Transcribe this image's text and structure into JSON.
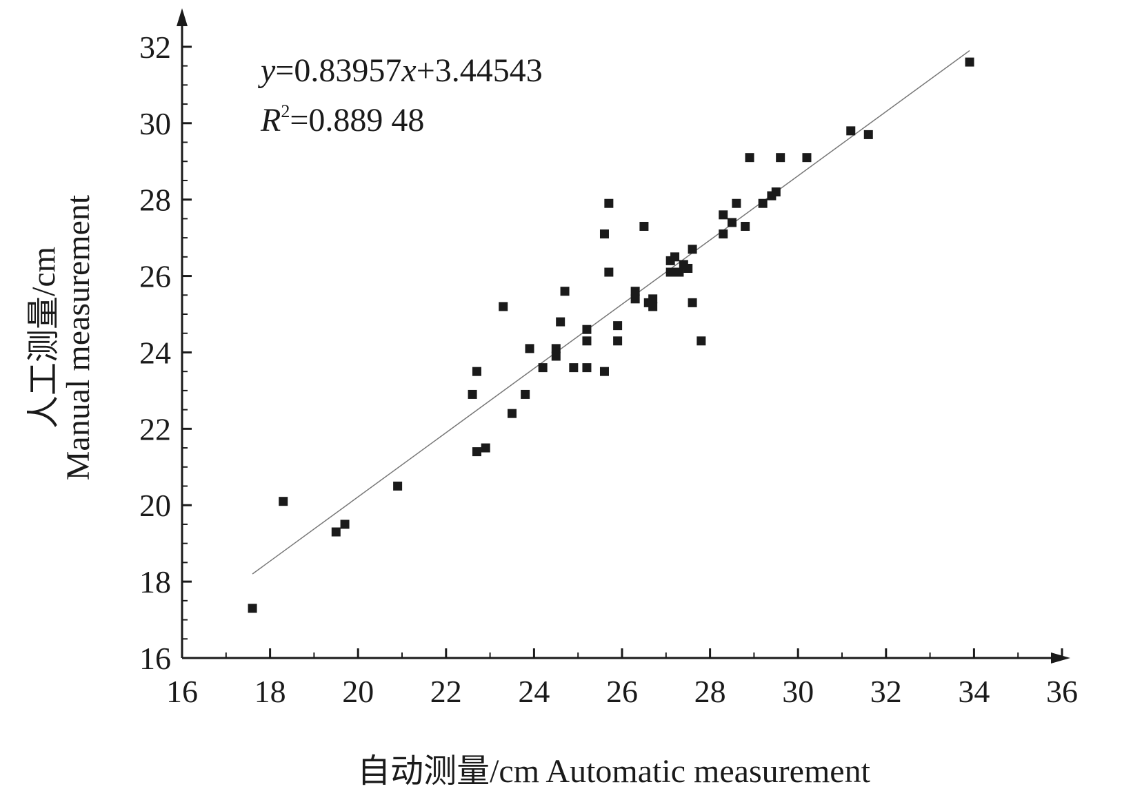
{
  "chart_data": {
    "type": "scatter",
    "x_label": "自动测量/cm  Automatic measurement",
    "y_label": [
      "人工测量/cm",
      "Manual measurement"
    ],
    "equation": [
      "y",
      "=0.83957",
      "x",
      "+3.44543"
    ],
    "r2": [
      "R",
      "2",
      "=0.889 48"
    ],
    "xlim": [
      16,
      36
    ],
    "ylim": [
      16,
      32.9
    ],
    "xticks": [
      16,
      18,
      20,
      22,
      24,
      26,
      28,
      30,
      32,
      34,
      36
    ],
    "yticks": [
      16,
      18,
      20,
      22,
      24,
      26,
      28,
      30,
      32
    ],
    "xminor": [
      17,
      19,
      21,
      23,
      25,
      27,
      29,
      31,
      33,
      35
    ],
    "yminor": [
      16.5,
      17,
      17.5,
      18.5,
      19,
      19.5,
      20.5,
      21,
      21.5,
      22.5,
      23,
      23.5,
      24.5,
      25,
      25.5,
      26.5,
      27,
      27.5,
      28.5,
      29,
      29.5,
      30.5,
      31,
      31.5
    ],
    "color": "#1a1a1a",
    "fit_line": {
      "color": "#777777",
      "x": [
        17.6,
        33.9
      ],
      "y": [
        18.2,
        31.9
      ]
    },
    "x": [
      17.6,
      18.3,
      19.5,
      19.7,
      20.9,
      22.6,
      22.7,
      22.7,
      22.9,
      23.3,
      23.5,
      23.8,
      23.9,
      24.2,
      24.5,
      24.5,
      24.6,
      24.7,
      24.9,
      25.2,
      25.2,
      25.2,
      25.6,
      25.6,
      25.7,
      25.7,
      25.9,
      25.9,
      26.3,
      26.3,
      26.5,
      26.6,
      26.7,
      26.7,
      27.1,
      27.2,
      27.1,
      27.3,
      27.4,
      27.5,
      27.6,
      27.6,
      27.8,
      28.3,
      28.3,
      28.5,
      28.6,
      28.8,
      28.9,
      29.2,
      29.4,
      29.5,
      29.6,
      30.2,
      31.2,
      31.6,
      33.9
    ],
    "y": [
      17.3,
      20.1,
      19.3,
      19.5,
      20.5,
      22.9,
      23.5,
      21.4,
      21.5,
      25.2,
      22.4,
      22.9,
      24.1,
      23.6,
      24.1,
      23.9,
      24.8,
      25.6,
      23.6,
      24.6,
      24.3,
      23.6,
      27.1,
      23.5,
      27.9,
      26.1,
      24.7,
      24.3,
      25.6,
      25.4,
      27.3,
      25.3,
      25.4,
      25.2,
      26.4,
      26.5,
      26.1,
      26.1,
      26.3,
      26.2,
      26.7,
      25.3,
      24.3,
      27.6,
      27.1,
      27.4,
      27.9,
      27.3,
      29.1,
      27.9,
      28.1,
      28.2,
      29.1,
      29.1,
      29.8,
      29.7,
      31.6
    ]
  }
}
